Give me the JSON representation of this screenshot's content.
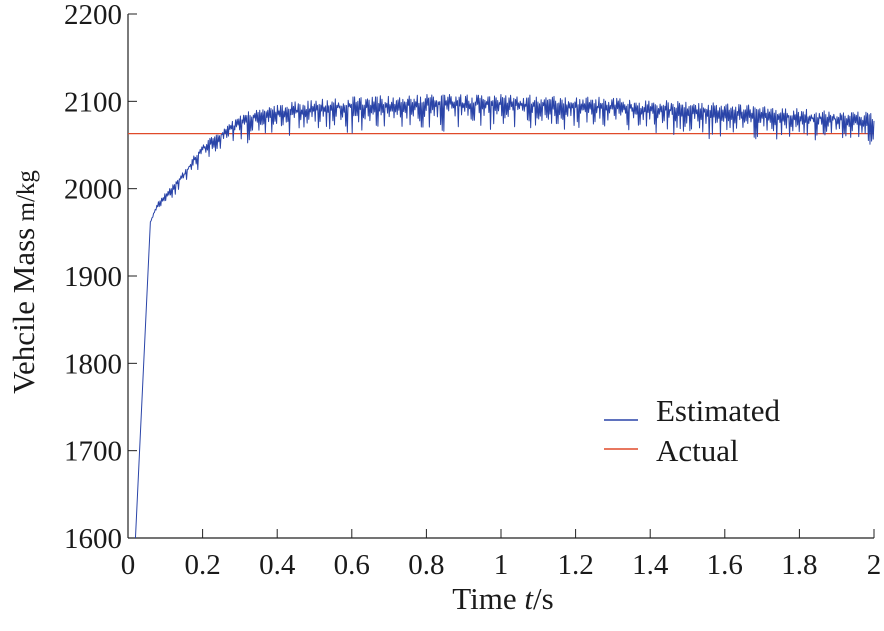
{
  "chart_data": {
    "type": "line",
    "title": "",
    "xlabel": {
      "prefix": "Time ",
      "italic": "t",
      "suffix": "/s"
    },
    "ylabel": {
      "main": "Vehcile Mass",
      "unit": " m/kg"
    },
    "xlim": [
      0,
      2
    ],
    "ylim": [
      1600,
      2200
    ],
    "xticks": [
      0,
      0.2,
      0.4,
      0.6,
      0.8,
      1,
      1.2,
      1.4,
      1.6,
      1.8,
      2
    ],
    "xtick_labels": [
      "0",
      "0.2",
      "0.4",
      "0.6",
      "0.8",
      "1",
      "1.2",
      "1.4",
      "1.6",
      "1.8",
      "2"
    ],
    "yticks": [
      1600,
      1700,
      1800,
      1900,
      2000,
      2100,
      2200
    ],
    "ytick_labels": [
      "1600",
      "1700",
      "1800",
      "1900",
      "2000",
      "2100",
      "2200"
    ],
    "grid": false,
    "legend_position": "lower-right",
    "series": [
      {
        "name": "Estimated",
        "color": "#2a44a8",
        "style": "oscillating",
        "x": [
          0.02,
          0.06,
          0.08,
          0.1,
          0.12,
          0.15,
          0.18,
          0.2,
          0.22,
          0.25,
          0.3,
          0.35,
          0.4,
          0.5,
          0.6,
          0.7,
          0.8,
          0.9,
          1.0,
          1.1,
          1.2,
          1.3,
          1.4,
          1.5,
          1.6,
          1.7,
          1.8,
          1.9,
          2.0
        ],
        "upper": [
          1600,
          1962,
          1985,
          1995,
          2005,
          2020,
          2040,
          2052,
          2058,
          2068,
          2085,
          2092,
          2097,
          2102,
          2105,
          2107,
          2108,
          2108,
          2108,
          2107,
          2106,
          2104,
          2102,
          2100,
          2098,
          2095,
          2092,
          2090,
          2087
        ],
        "lower": [
          1600,
          1962,
          1975,
          1982,
          1990,
          2002,
          2018,
          2028,
          2035,
          2042,
          2050,
          2055,
          2058,
          2060,
          2062,
          2063,
          2064,
          2064,
          2064,
          2063,
          2062,
          2061,
          2059,
          2057,
          2055,
          2053,
          2051,
          2049,
          2047
        ]
      },
      {
        "name": "Actual",
        "color": "#e04a2a",
        "x": [
          0,
          2
        ],
        "values": [
          2063,
          2063
        ]
      }
    ]
  }
}
